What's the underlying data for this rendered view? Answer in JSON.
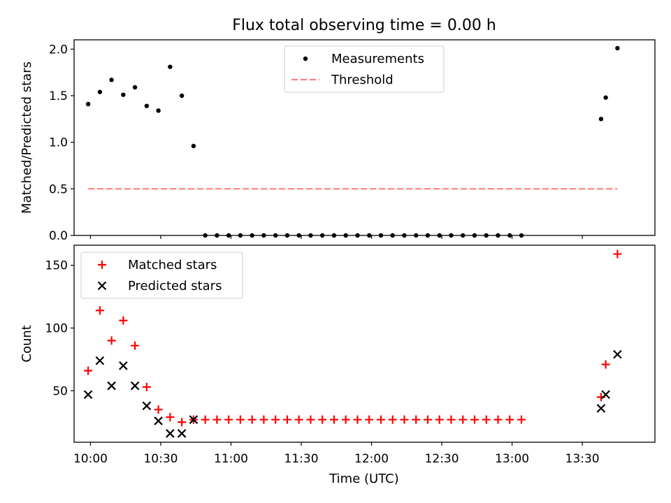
{
  "title": "Flux total observing time = 0.00 h",
  "xlabel": "Time (UTC)",
  "chart_data": [
    {
      "type": "scatter",
      "ylabel": "Matched/Predicted stars",
      "xlim": [
        "09:53",
        "14:01"
      ],
      "ylim": [
        0,
        2.1
      ],
      "yticks": [
        0.0,
        0.5,
        1.0,
        1.5,
        2.0
      ],
      "ytick_labels": [
        "0.0",
        "0.5",
        "1.0",
        "1.5",
        "2.0"
      ],
      "legend_position": "upper center",
      "series": [
        {
          "name": "Measurements",
          "marker": "dot",
          "color": "#000000",
          "points": [
            {
              "x": "09:59",
              "y": 1.41
            },
            {
              "x": "10:04",
              "y": 1.54
            },
            {
              "x": "10:09",
              "y": 1.67
            },
            {
              "x": "10:14",
              "y": 1.51
            },
            {
              "x": "10:19",
              "y": 1.59
            },
            {
              "x": "10:24",
              "y": 1.39
            },
            {
              "x": "10:29",
              "y": 1.34
            },
            {
              "x": "10:34",
              "y": 1.81
            },
            {
              "x": "10:39",
              "y": 1.5
            },
            {
              "x": "10:44",
              "y": 0.96
            },
            {
              "x": "10:49",
              "y": 0.0
            },
            {
              "x": "10:54",
              "y": 0.0
            },
            {
              "x": "10:59",
              "y": 0.0
            },
            {
              "x": "11:04",
              "y": 0.0
            },
            {
              "x": "11:09",
              "y": 0.0
            },
            {
              "x": "11:14",
              "y": 0.0
            },
            {
              "x": "11:19",
              "y": 0.0
            },
            {
              "x": "11:24",
              "y": 0.0
            },
            {
              "x": "11:29",
              "y": 0.0
            },
            {
              "x": "11:34",
              "y": 0.0
            },
            {
              "x": "11:39",
              "y": 0.0
            },
            {
              "x": "11:44",
              "y": 0.0
            },
            {
              "x": "11:49",
              "y": 0.0
            },
            {
              "x": "11:54",
              "y": 0.0
            },
            {
              "x": "11:59",
              "y": 0.0
            },
            {
              "x": "12:04",
              "y": 0.0
            },
            {
              "x": "12:09",
              "y": 0.0
            },
            {
              "x": "12:14",
              "y": 0.0
            },
            {
              "x": "12:19",
              "y": 0.0
            },
            {
              "x": "12:24",
              "y": 0.0
            },
            {
              "x": "12:29",
              "y": 0.0
            },
            {
              "x": "12:34",
              "y": 0.0
            },
            {
              "x": "12:39",
              "y": 0.0
            },
            {
              "x": "12:44",
              "y": 0.0
            },
            {
              "x": "12:49",
              "y": 0.0
            },
            {
              "x": "12:54",
              "y": 0.0
            },
            {
              "x": "12:59",
              "y": 0.0
            },
            {
              "x": "13:04",
              "y": 0.0
            },
            {
              "x": "13:38",
              "y": 1.25
            },
            {
              "x": "13:40",
              "y": 1.48
            },
            {
              "x": "13:45",
              "y": 2.01
            }
          ]
        },
        {
          "name": "Threshold",
          "style": "dashed-line",
          "color": "#ff7f7f",
          "points": [
            {
              "x": "09:59",
              "y": 0.5
            },
            {
              "x": "13:45",
              "y": 0.5
            }
          ]
        }
      ]
    },
    {
      "type": "scatter",
      "ylabel": "Count",
      "xlim": [
        "09:53",
        "14:01"
      ],
      "ylim": [
        9,
        166
      ],
      "yticks": [
        50,
        100,
        150
      ],
      "ytick_labels": [
        "50",
        "100",
        "150"
      ],
      "xticks": [
        "10:00",
        "10:30",
        "11:00",
        "11:30",
        "12:00",
        "12:30",
        "13:00",
        "13:30"
      ],
      "xtick_labels": [
        "10:00",
        "10:30",
        "11:00",
        "11:30",
        "12:00",
        "12:30",
        "13:00",
        "13:30"
      ],
      "legend_position": "upper left",
      "series": [
        {
          "name": "Matched stars",
          "marker": "plus",
          "color": "#ff0000",
          "points": [
            {
              "x": "09:59",
              "y": 66
            },
            {
              "x": "10:04",
              "y": 114
            },
            {
              "x": "10:09",
              "y": 90
            },
            {
              "x": "10:14",
              "y": 106
            },
            {
              "x": "10:19",
              "y": 86
            },
            {
              "x": "10:24",
              "y": 53
            },
            {
              "x": "10:29",
              "y": 35
            },
            {
              "x": "10:34",
              "y": 29
            },
            {
              "x": "10:39",
              "y": 25
            },
            {
              "x": "10:44",
              "y": 27
            },
            {
              "x": "10:49",
              "y": 27
            },
            {
              "x": "10:54",
              "y": 27
            },
            {
              "x": "10:59",
              "y": 27
            },
            {
              "x": "11:04",
              "y": 27
            },
            {
              "x": "11:09",
              "y": 27
            },
            {
              "x": "11:14",
              "y": 27
            },
            {
              "x": "11:19",
              "y": 27
            },
            {
              "x": "11:24",
              "y": 27
            },
            {
              "x": "11:29",
              "y": 27
            },
            {
              "x": "11:34",
              "y": 27
            },
            {
              "x": "11:39",
              "y": 27
            },
            {
              "x": "11:44",
              "y": 27
            },
            {
              "x": "11:49",
              "y": 27
            },
            {
              "x": "11:54",
              "y": 27
            },
            {
              "x": "11:59",
              "y": 27
            },
            {
              "x": "12:04",
              "y": 27
            },
            {
              "x": "12:09",
              "y": 27
            },
            {
              "x": "12:14",
              "y": 27
            },
            {
              "x": "12:19",
              "y": 27
            },
            {
              "x": "12:24",
              "y": 27
            },
            {
              "x": "12:29",
              "y": 27
            },
            {
              "x": "12:34",
              "y": 27
            },
            {
              "x": "12:39",
              "y": 27
            },
            {
              "x": "12:44",
              "y": 27
            },
            {
              "x": "12:49",
              "y": 27
            },
            {
              "x": "12:54",
              "y": 27
            },
            {
              "x": "12:59",
              "y": 27
            },
            {
              "x": "13:04",
              "y": 27
            },
            {
              "x": "13:38",
              "y": 45
            },
            {
              "x": "13:40",
              "y": 71
            },
            {
              "x": "13:45",
              "y": 159
            }
          ]
        },
        {
          "name": "Predicted stars",
          "marker": "x",
          "color": "#000000",
          "points": [
            {
              "x": "09:59",
              "y": 47
            },
            {
              "x": "10:04",
              "y": 74
            },
            {
              "x": "10:09",
              "y": 54
            },
            {
              "x": "10:14",
              "y": 70
            },
            {
              "x": "10:19",
              "y": 54
            },
            {
              "x": "10:24",
              "y": 38
            },
            {
              "x": "10:29",
              "y": 26
            },
            {
              "x": "10:34",
              "y": 16
            },
            {
              "x": "10:39",
              "y": 16
            },
            {
              "x": "10:44",
              "y": 27
            },
            {
              "x": "13:38",
              "y": 36
            },
            {
              "x": "13:40",
              "y": 47
            },
            {
              "x": "13:45",
              "y": 79
            }
          ]
        }
      ]
    }
  ]
}
